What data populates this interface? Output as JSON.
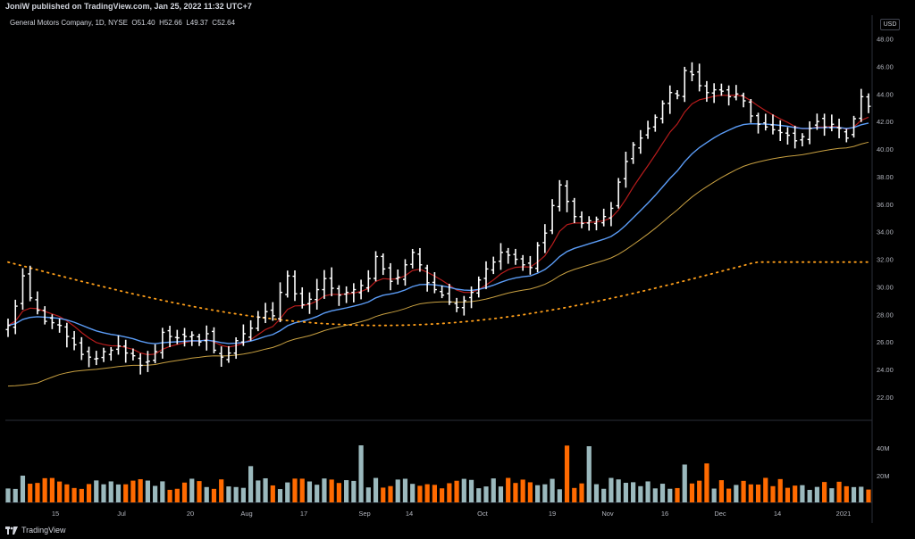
{
  "header": {
    "publisher_line": "JoniW published on TradingView.com, Jan 25, 2022 11:32 UTC+7"
  },
  "legend": {
    "symbol": "General Motors Company, 1D, NYSE",
    "open_label": "O",
    "open": "51.40",
    "high_label": "H",
    "high": "52.66",
    "low_label": "L",
    "low": "49.37",
    "close_label": "C",
    "close": "52.64"
  },
  "currency": "USD",
  "footer": {
    "brand": "TradingView"
  },
  "colors": {
    "up_volume": "#9bb9bd",
    "down_volume": "#ff6a00",
    "ema_blue": "#5b9cf6",
    "ema_red": "#b71c1c",
    "sma_gold": "#c8a041",
    "sma_dotted": "#ff9f1a"
  },
  "chart_data": [
    {
      "type": "ohlc",
      "title": "General Motors Company, 1D, NYSE",
      "price_axis": {
        "ticks": [
          "48.00",
          "46.00",
          "44.00",
          "42.00",
          "40.00",
          "38.00",
          "36.00",
          "34.00",
          "32.00",
          "30.00",
          "28.00",
          "26.00",
          "24.00",
          "22.00"
        ],
        "range": [
          20.0,
          48.8
        ]
      },
      "time_axis": {
        "ticks": [
          "15",
          "Jul",
          "20",
          "Aug",
          "17",
          "Sep",
          "14",
          "Oct",
          "19",
          "Nov",
          "16",
          "Dec",
          "14",
          "2021"
        ]
      },
      "close": [
        27.2,
        28.6,
        30.8,
        29.2,
        28.3,
        27.5,
        27.4,
        27.2,
        26.4,
        25.8,
        25.1,
        24.9,
        24.8,
        25.3,
        25.4,
        25.7,
        25.2,
        25.0,
        24.3,
        24.6,
        25.3,
        26.7,
        26.4,
        26.3,
        26.4,
        26.5,
        26.0,
        26.6,
        25.4,
        24.9,
        25.2,
        26.1,
        26.6,
        27.0,
        27.8,
        28.2,
        27.9,
        29.6,
        30.8,
        29.5,
        28.7,
        29.1,
        29.8,
        30.6,
        29.9,
        29.4,
        29.6,
        29.8,
        30.1,
        30.6,
        32.2,
        31.3,
        30.4,
        30.7,
        31.6,
        32.5,
        31.6,
        30.3,
        29.8,
        29.4,
        28.9,
        28.5,
        29.0,
        29.6,
        30.5,
        31.3,
        31.8,
        32.5,
        32.3,
        32.0,
        31.6,
        31.4,
        33.0,
        33.9,
        35.9,
        37.4,
        36.2,
        35.1,
        34.6,
        34.8,
        34.9,
        35.1,
        35.7,
        37.6,
        39.1,
        40.3,
        40.8,
        41.5,
        42.3,
        43.3,
        44.1,
        43.9,
        45.7,
        45.4,
        44.6,
        44.1,
        44.3,
        44.2,
        43.8,
        44.0,
        43.5,
        42.4,
        41.8,
        41.6,
        41.4,
        41.2,
        41.0,
        40.6,
        40.9,
        41.5,
        42.0,
        41.6,
        41.8,
        41.5,
        40.8,
        42.2,
        43.8,
        43.1
      ],
      "volume": {
        "ticks": [
          "40M",
          "20M"
        ],
        "units": "shares"
      },
      "indicators": [
        {
          "name": "EMA",
          "style": "solid",
          "color": "#5b9cf6"
        },
        {
          "name": "EMA",
          "style": "solid",
          "color": "#b71c1c"
        },
        {
          "name": "SMA",
          "style": "solid",
          "color": "#c8a041"
        },
        {
          "name": "SMA",
          "style": "dotted",
          "color": "#ff9f1a"
        }
      ],
      "grid": false
    }
  ]
}
